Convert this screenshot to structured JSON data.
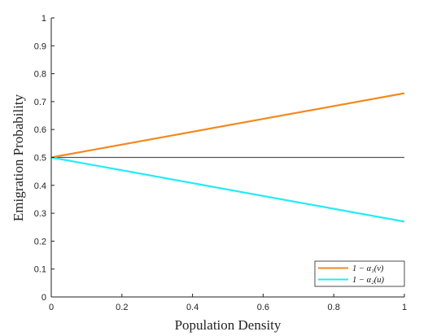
{
  "chart_data": {
    "type": "line",
    "xlabel": "Population Density",
    "ylabel": "Emigration Probability",
    "xlim": [
      0,
      1
    ],
    "ylim": [
      0,
      1
    ],
    "xticks": [
      0,
      0.2,
      0.4,
      0.6,
      0.8,
      1
    ],
    "xtick_labels": [
      "0",
      "0.2",
      "0.4",
      "0.6",
      "0.8",
      "1"
    ],
    "yticks": [
      0,
      0.1,
      0.2,
      0.3,
      0.4,
      0.5,
      0.6,
      0.7,
      0.8,
      0.9,
      1
    ],
    "ytick_labels": [
      "0",
      "0.1",
      "0.2",
      "0.3",
      "0.4",
      "0.5",
      "0.6",
      "0.7",
      "0.8",
      "0.9",
      "1"
    ],
    "grid": false,
    "legend_position": "bottom-right",
    "reference_line": {
      "y": 0.5,
      "color": "#555555"
    },
    "series": [
      {
        "name": "1 − α₁(v)",
        "color": "#f28a1e",
        "x": [
          0,
          1
        ],
        "y": [
          0.5,
          0.73
        ]
      },
      {
        "name": "1 − α₂(u)",
        "color": "#22ecf5",
        "x": [
          0,
          1
        ],
        "y": [
          0.5,
          0.27
        ]
      }
    ]
  }
}
